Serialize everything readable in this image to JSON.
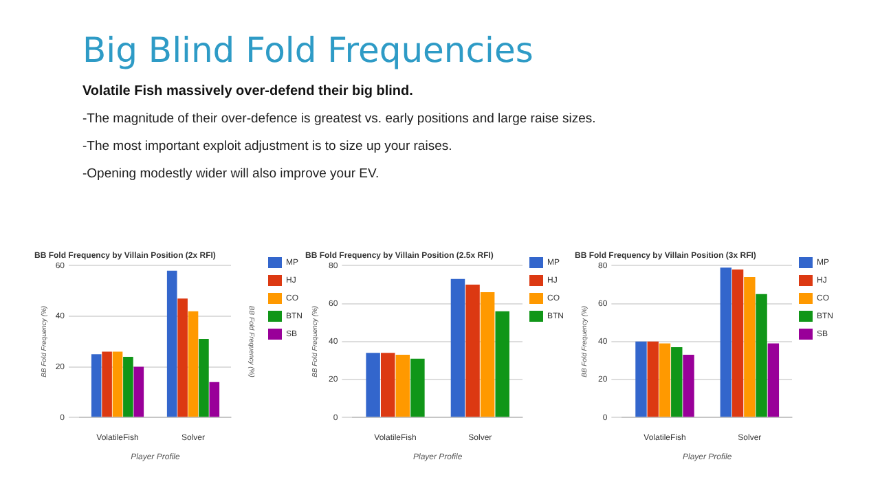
{
  "chart_data": [
    {
      "type": "other",
      "title": "Big Blind Fold Frequencies",
      "subtitle": "Volatile Fish massively over-defend their big blind.",
      "annotations": [
        "-The magnitude of their over-defence is greatest vs. early positions and large raise sizes.",
        "-The most important exploit adjustment is to size up your raises.",
        "-Opening modestly wider will also improve your EV."
      ]
    },
    {
      "type": "bar",
      "title": "BB Fold Frequency by Villain Position (2x RFI)",
      "xlabel": "Player Profile",
      "ylabel": "BB Fold Frequency (%)",
      "y2label": "BB Fold Frequency (%)",
      "categories": [
        "VolatileFish",
        "Solver"
      ],
      "ylim": [
        0,
        60
      ],
      "yticks": [
        0,
        20,
        40,
        60
      ],
      "grid": "y",
      "legend": "top right",
      "series": [
        {
          "name": "MP",
          "color": "#3366cc",
          "values": [
            25,
            58
          ]
        },
        {
          "name": "HJ",
          "color": "#dc3912",
          "values": [
            26,
            47
          ]
        },
        {
          "name": "CO",
          "color": "#ff9900",
          "values": [
            26,
            42
          ]
        },
        {
          "name": "BTN",
          "color": "#109618",
          "values": [
            24,
            31
          ]
        },
        {
          "name": "SB",
          "color": "#990099",
          "values": [
            20,
            14
          ]
        }
      ]
    },
    {
      "type": "bar",
      "title": "BB Fold Frequency by Villain Position (2.5x RFI)",
      "xlabel": "Player Profile",
      "ylabel": "BB Fold Frequency (%)",
      "categories": [
        "VolatileFish",
        "Solver"
      ],
      "ylim": [
        0,
        80
      ],
      "yticks": [
        0,
        20,
        40,
        60,
        80
      ],
      "grid": "y",
      "legend": "top right",
      "series": [
        {
          "name": "MP",
          "color": "#3366cc",
          "values": [
            34,
            73
          ]
        },
        {
          "name": "HJ",
          "color": "#dc3912",
          "values": [
            34,
            70
          ]
        },
        {
          "name": "CO",
          "color": "#ff9900",
          "values": [
            33,
            66
          ]
        },
        {
          "name": "BTN",
          "color": "#109618",
          "values": [
            31,
            56
          ]
        }
      ]
    },
    {
      "type": "bar",
      "title": "BB Fold Frequency by Villain Position (3x RFI)",
      "xlabel": "Player Profile",
      "ylabel": "BB Fold Frequency (%)",
      "categories": [
        "VolatileFish",
        "Solver"
      ],
      "ylim": [
        0,
        80
      ],
      "yticks": [
        0,
        20,
        40,
        60,
        80
      ],
      "grid": "y",
      "legend": "top right",
      "series": [
        {
          "name": "MP",
          "color": "#3366cc",
          "values": [
            40,
            79
          ]
        },
        {
          "name": "HJ",
          "color": "#dc3912",
          "values": [
            40,
            78
          ]
        },
        {
          "name": "CO",
          "color": "#ff9900",
          "values": [
            39,
            74
          ]
        },
        {
          "name": "BTN",
          "color": "#109618",
          "values": [
            37,
            65
          ]
        },
        {
          "name": "SB",
          "color": "#990099",
          "values": [
            33,
            39
          ]
        }
      ]
    }
  ]
}
